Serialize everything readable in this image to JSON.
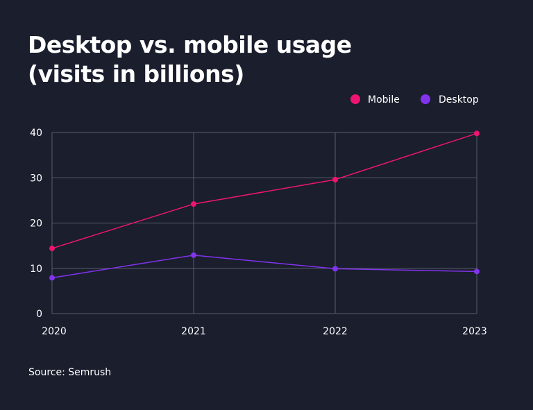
{
  "title_line1": "Desktop vs. mobile usage",
  "title_line2": "(visits in billions)",
  "source": "Source: Semrush",
  "colors": {
    "background": "#1a1e2d",
    "grid": "#5a5d6b",
    "text": "#ffffff",
    "mobile": "#ee1572",
    "desktop": "#8233ee"
  },
  "chart_data": {
    "type": "line",
    "title": "Desktop vs. mobile usage (visits in billions)",
    "xlabel": "",
    "ylabel": "",
    "categories": [
      "2020",
      "2021",
      "2022",
      "2023"
    ],
    "y_ticks": [
      "0",
      "10",
      "20",
      "30",
      "40"
    ],
    "ylim": [
      0,
      40
    ],
    "legend_position": "top-right",
    "grid": true,
    "series": [
      {
        "name": "Mobile",
        "values": [
          14.4,
          24.2,
          29.6,
          39.8
        ]
      },
      {
        "name": "Desktop",
        "values": [
          7.9,
          12.9,
          9.9,
          9.3
        ]
      }
    ]
  }
}
